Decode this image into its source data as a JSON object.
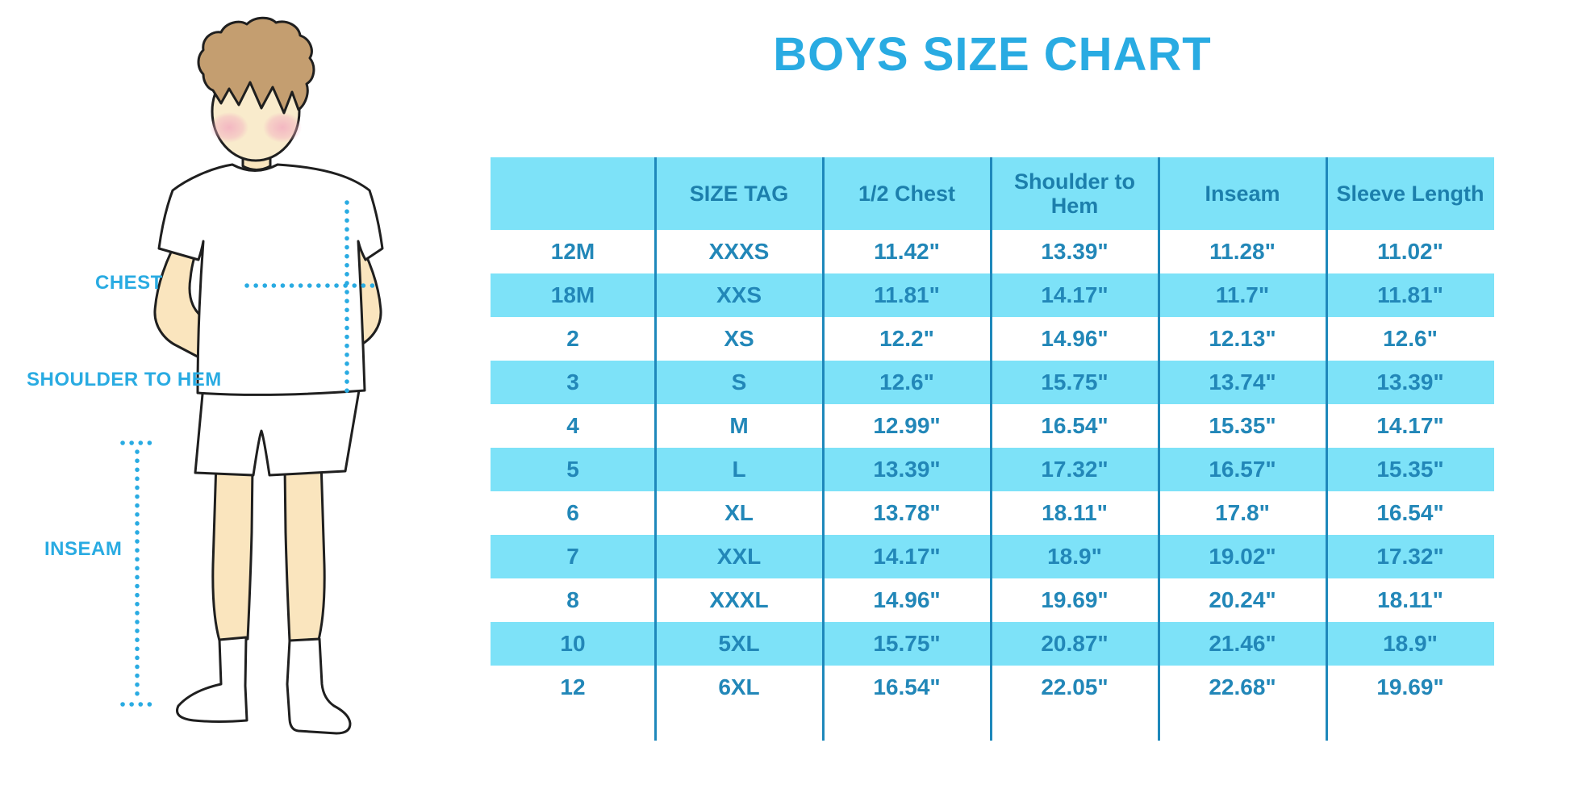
{
  "title": "BOYS SIZE CHART",
  "colors": {
    "accent_blue": "#29ABE2",
    "table_text": "#2287B8",
    "table_header_text": "#1C7FAC",
    "row_highlight": "#7DE2F8",
    "row_plain": "#FFFFFF",
    "divider": "#1E88BB",
    "skin": "#FAE5BE",
    "face": "#F9EBCC",
    "hair": "#C49E70",
    "blush": "#F2AEC0",
    "outline": "#1F1F1F",
    "garment": "#FFFFFF"
  },
  "figure": {
    "labels": {
      "chest": "CHEST",
      "shoulder_to_hem": "SHOULDER TO HEM",
      "inseam": "INSEAM"
    }
  },
  "chart_data": {
    "type": "table",
    "title": "BOYS SIZE CHART",
    "columns": [
      "",
      "SIZE TAG",
      "1/2 Chest",
      "Shoulder to Hem",
      "Inseam",
      "Sleeve Length"
    ],
    "rows": [
      [
        "12M",
        "XXXS",
        "11.42\"",
        "13.39\"",
        "11.28\"",
        "11.02\""
      ],
      [
        "18M",
        "XXS",
        "11.81\"",
        "14.17\"",
        "11.7\"",
        "11.81\""
      ],
      [
        "2",
        "XS",
        "12.2\"",
        "14.96\"",
        "12.13\"",
        "12.6\""
      ],
      [
        "3",
        "S",
        "12.6\"",
        "15.75\"",
        "13.74\"",
        "13.39\""
      ],
      [
        "4",
        "M",
        "12.99\"",
        "16.54\"",
        "15.35\"",
        "14.17\""
      ],
      [
        "5",
        "L",
        "13.39\"",
        "17.32\"",
        "16.57\"",
        "15.35\""
      ],
      [
        "6",
        "XL",
        "13.78\"",
        "18.11\"",
        "17.8\"",
        "16.54\""
      ],
      [
        "7",
        "XXL",
        "14.17\"",
        "18.9\"",
        "19.02\"",
        "17.32\""
      ],
      [
        "8",
        "XXXL",
        "14.96\"",
        "19.69\"",
        "20.24\"",
        "18.11\""
      ],
      [
        "10",
        "5XL",
        "15.75\"",
        "20.87\"",
        "21.46\"",
        "18.9\""
      ],
      [
        "12",
        "6XL",
        "16.54\"",
        "22.05\"",
        "22.68\"",
        "19.69\""
      ]
    ],
    "layout": {
      "header_bg": "#7DE2F8",
      "row_striping": "alternating",
      "grid": "vertical column dividers only",
      "legend_position": "none"
    }
  }
}
